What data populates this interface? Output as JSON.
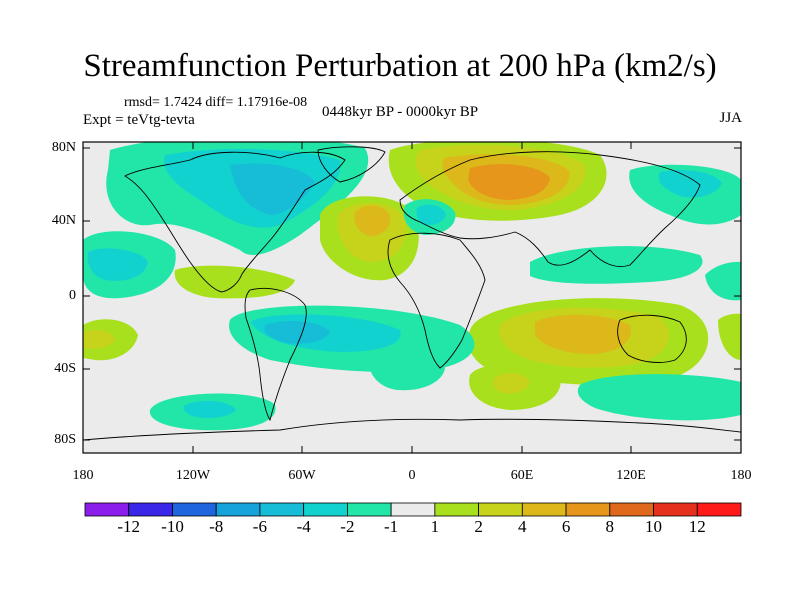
{
  "title": "Streamfunction Perturbation at 200 hPa (km2/s)",
  "stats_line": "rmsd= 1.7424 diff= 1.17916e-08",
  "experiment_line": "Expt = teVtg-tevta",
  "period_line": "0448kyr BP - 0000kyr BP",
  "season": "JJA",
  "lat_labels": [
    "80N",
    "40N",
    "0",
    "40S",
    "80S"
  ],
  "lon_labels": [
    "180",
    "120W",
    "60W",
    "0",
    "60E",
    "120E",
    "180"
  ],
  "colorbar_labels": [
    "-12",
    "-10",
    "-8",
    "-6",
    "-4",
    "-2",
    "-1",
    "1",
    "2",
    "4",
    "6",
    "8",
    "10",
    "12"
  ],
  "colorbar_colors": [
    "#8b1eea",
    "#3a26e6",
    "#1f66de",
    "#16a3dc",
    "#17bcd6",
    "#12d2d0",
    "#22e6a8",
    "#ebebeb",
    "#a9e01e",
    "#c7d21b",
    "#dcb81a",
    "#e6971b",
    "#e0681d",
    "#e4301d",
    "#ff1a1a"
  ],
  "colors": {
    "background_field": "#ebebeb",
    "coastline": "#000000"
  }
}
